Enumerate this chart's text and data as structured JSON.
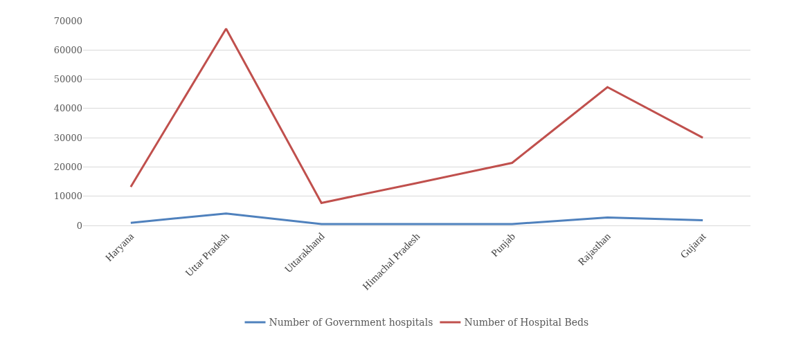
{
  "chart_data": {
    "type": "line",
    "categories": [
      "Haryana",
      "Uttar Pradesh",
      "Uttarakhand",
      "Himachal Pradesh",
      "Punjab",
      "Rajasthan",
      "Gujarat"
    ],
    "series": [
      {
        "name": "Number of Government hospitals",
        "color": "#4f81bd",
        "values": [
          900,
          4100,
          500,
          500,
          500,
          2700,
          1800
        ]
      },
      {
        "name": "Number of Hospital Beds",
        "color": "#c0504d",
        "values": [
          13200,
          67300,
          7700,
          14500,
          21400,
          47300,
          30000
        ]
      }
    ],
    "ylim": [
      0,
      70000
    ],
    "yticks": [
      0,
      10000,
      20000,
      30000,
      40000,
      50000,
      60000,
      70000
    ],
    "grid": "y",
    "legend": "bottom",
    "marker": "none",
    "line_style": "solid"
  }
}
